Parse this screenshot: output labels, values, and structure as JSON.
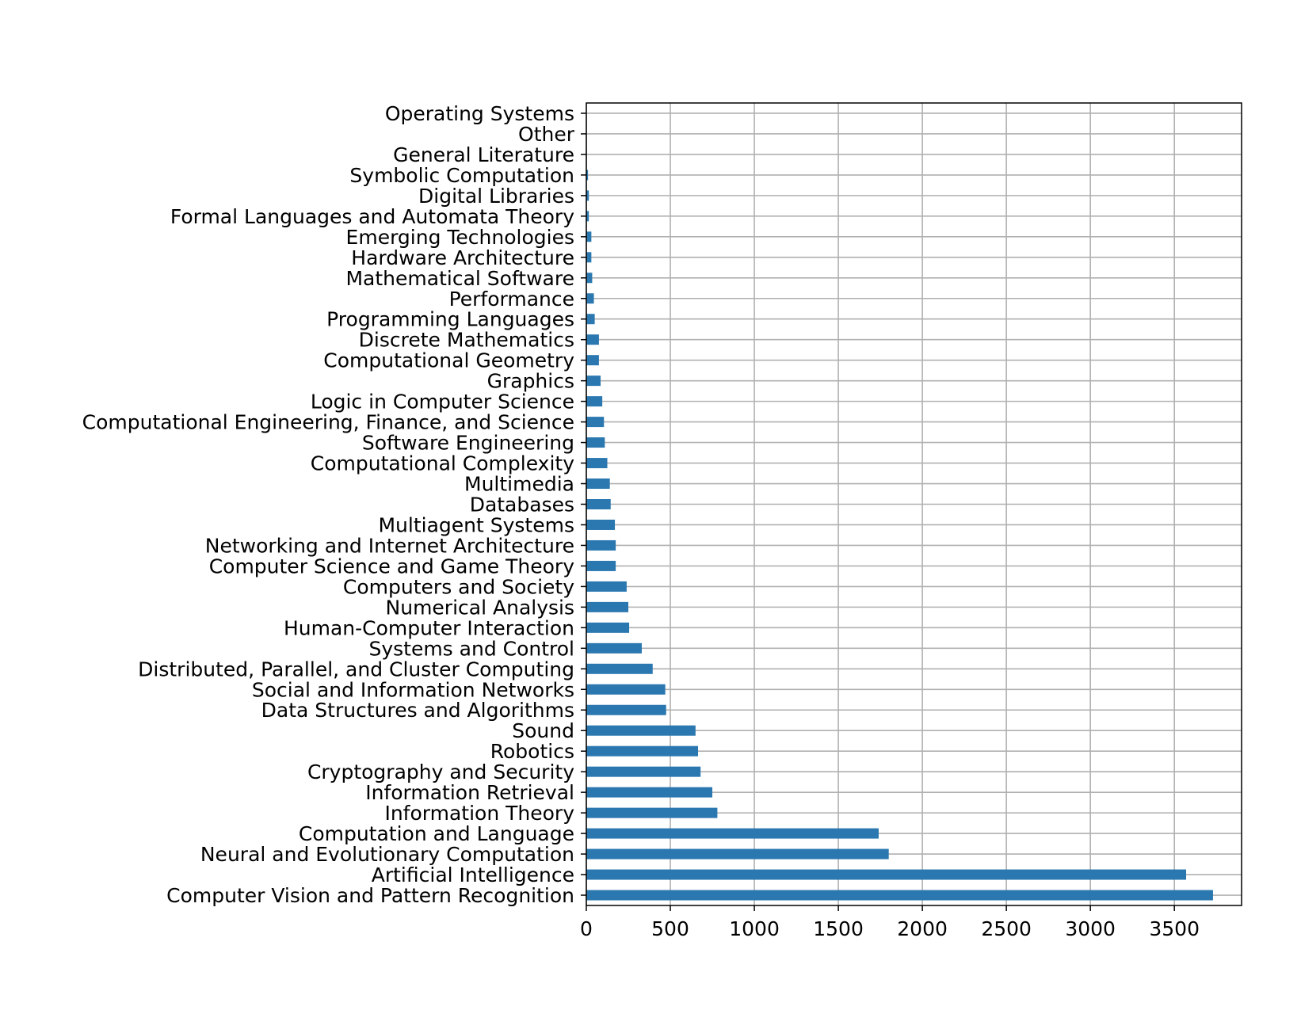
{
  "chart_data": {
    "type": "bar",
    "orientation": "horizontal",
    "title": "",
    "xlabel": "",
    "ylabel": "",
    "xlim": [
      0,
      3900
    ],
    "xticks": [
      0,
      500,
      1000,
      1500,
      2000,
      2500,
      3000,
      3500
    ],
    "grid": true,
    "legend": "none",
    "bar_color": "#2b78b0",
    "categories": [
      "Computer Vision and Pattern Recognition",
      "Artificial Intelligence",
      "Neural and Evolutionary Computation",
      "Computation and Language",
      "Information Theory",
      "Information Retrieval",
      "Cryptography and Security",
      "Robotics",
      "Sound",
      "Data Structures and Algorithms",
      "Social and Information Networks",
      "Distributed, Parallel, and Cluster Computing",
      "Systems and Control",
      "Human-Computer Interaction",
      "Numerical Analysis",
      "Computers and Society",
      "Computer Science and Game Theory",
      "Networking and Internet Architecture",
      "Multiagent Systems",
      "Databases",
      "Multimedia",
      "Computational Complexity",
      "Software Engineering",
      "Computational Engineering, Finance, and Science",
      "Logic in Computer Science",
      "Graphics",
      "Computational Geometry",
      "Discrete Mathematics",
      "Programming Languages",
      "Performance",
      "Mathematical Software",
      "Hardware Architecture",
      "Emerging Technologies",
      "Formal Languages and Automata Theory",
      "Digital Libraries",
      "Symbolic Computation",
      "General Literature",
      "Other",
      "Operating Systems"
    ],
    "values": [
      3730,
      3570,
      1800,
      1740,
      780,
      750,
      680,
      665,
      650,
      475,
      470,
      395,
      330,
      255,
      250,
      240,
      175,
      175,
      170,
      145,
      140,
      125,
      110,
      105,
      95,
      85,
      75,
      75,
      50,
      45,
      35,
      30,
      30,
      15,
      15,
      10,
      3,
      2,
      2
    ]
  }
}
